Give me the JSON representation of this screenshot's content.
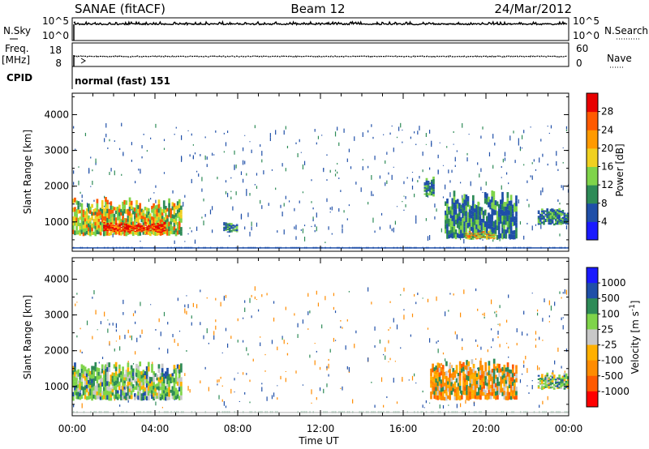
{
  "header": {
    "station": "SANAE (fitACF)",
    "beam": "Beam 12",
    "date": "24/Mar/2012"
  },
  "panels": {
    "noise": {
      "left_label": "N.Sky",
      "left_ticks": [
        "10^5",
        "10^0"
      ],
      "right_ticks": [
        "10^5",
        "10^0"
      ],
      "right_label": "N.Search"
    },
    "freq": {
      "left_label_1": "Freq.",
      "left_label_2": "[MHz]",
      "left_ticks": [
        "18",
        "8"
      ],
      "right_ticks": [
        "60",
        "0"
      ],
      "right_label": "Nave"
    },
    "cpid": {
      "label": "CPID",
      "value": "normal (fast) 151"
    }
  },
  "colors": {
    "power": [
      "#1a1aff",
      "#1f4fa8",
      "#2e8b57",
      "#7fd44a",
      "#f0d020",
      "#ff9a00",
      "#ff5a00",
      "#e80000"
    ],
    "velocity": [
      "#ff0000",
      "#ff5a00",
      "#ff8c00",
      "#ffb000",
      "#c8c8c8",
      "#7fd44a",
      "#2e8b57",
      "#1f4fa8",
      "#1a1aff"
    ]
  },
  "chart_data": [
    {
      "type": "heatmap",
      "name": "Power",
      "ylabel": "Slant Range [km]",
      "y_ticks": [
        "1000",
        "2000",
        "3000",
        "4000"
      ],
      "ylim": [
        180,
        4600
      ],
      "x_ticks": [
        "00:00",
        "04:00",
        "08:00",
        "12:00",
        "16:00",
        "20:00",
        "00:00"
      ],
      "colorbar": {
        "label": "Power [dB]",
        "ticks": [
          "4",
          "8",
          "12",
          "16",
          "20",
          "24",
          "28"
        ],
        "range": [
          0,
          30
        ]
      },
      "echo_regions": [
        {
          "t_start": 0.0,
          "t_end": 5.3,
          "r_min": 600,
          "r_max": 1700,
          "level": "high"
        },
        {
          "t_start": 1.5,
          "t_end": 4.5,
          "r_min": 700,
          "r_max": 1000,
          "level": "max"
        },
        {
          "t_start": 7.3,
          "t_end": 8.0,
          "r_min": 700,
          "r_max": 1000,
          "level": "medium"
        },
        {
          "t_start": 17.0,
          "t_end": 17.5,
          "r_min": 1700,
          "r_max": 2300,
          "level": "medium"
        },
        {
          "t_start": 18.0,
          "t_end": 21.5,
          "r_min": 500,
          "r_max": 1900,
          "level": "medium"
        },
        {
          "t_start": 19.0,
          "t_end": 20.5,
          "r_min": 500,
          "r_max": 750,
          "level": "high"
        },
        {
          "t_start": 22.5,
          "t_end": 24.0,
          "r_min": 900,
          "r_max": 1400,
          "level": "medium"
        }
      ]
    },
    {
      "type": "heatmap",
      "name": "Velocity",
      "ylabel": "Slant Range [km]",
      "y_ticks": [
        "1000",
        "2000",
        "3000",
        "4000"
      ],
      "ylim": [
        180,
        4600
      ],
      "x_ticks": [
        "00:00",
        "04:00",
        "08:00",
        "12:00",
        "16:00",
        "20:00",
        "00:00"
      ],
      "xlabel": "Time UT",
      "colorbar": {
        "label": "Velocity [m s^-1]",
        "ticks": [
          "1000",
          "500",
          "100",
          "25",
          "-25",
          "-100",
          "-500",
          "-1000"
        ],
        "range": [
          -1000,
          1000
        ]
      },
      "echo_regions": [
        {
          "t_start": 0.0,
          "t_end": 5.3,
          "r_min": 600,
          "r_max": 1700,
          "level": "positive"
        },
        {
          "t_start": 17.3,
          "t_end": 21.5,
          "r_min": 600,
          "r_max": 1800,
          "level": "negative"
        },
        {
          "t_start": 22.5,
          "t_end": 24.0,
          "r_min": 900,
          "r_max": 1400,
          "level": "positive"
        }
      ]
    }
  ]
}
